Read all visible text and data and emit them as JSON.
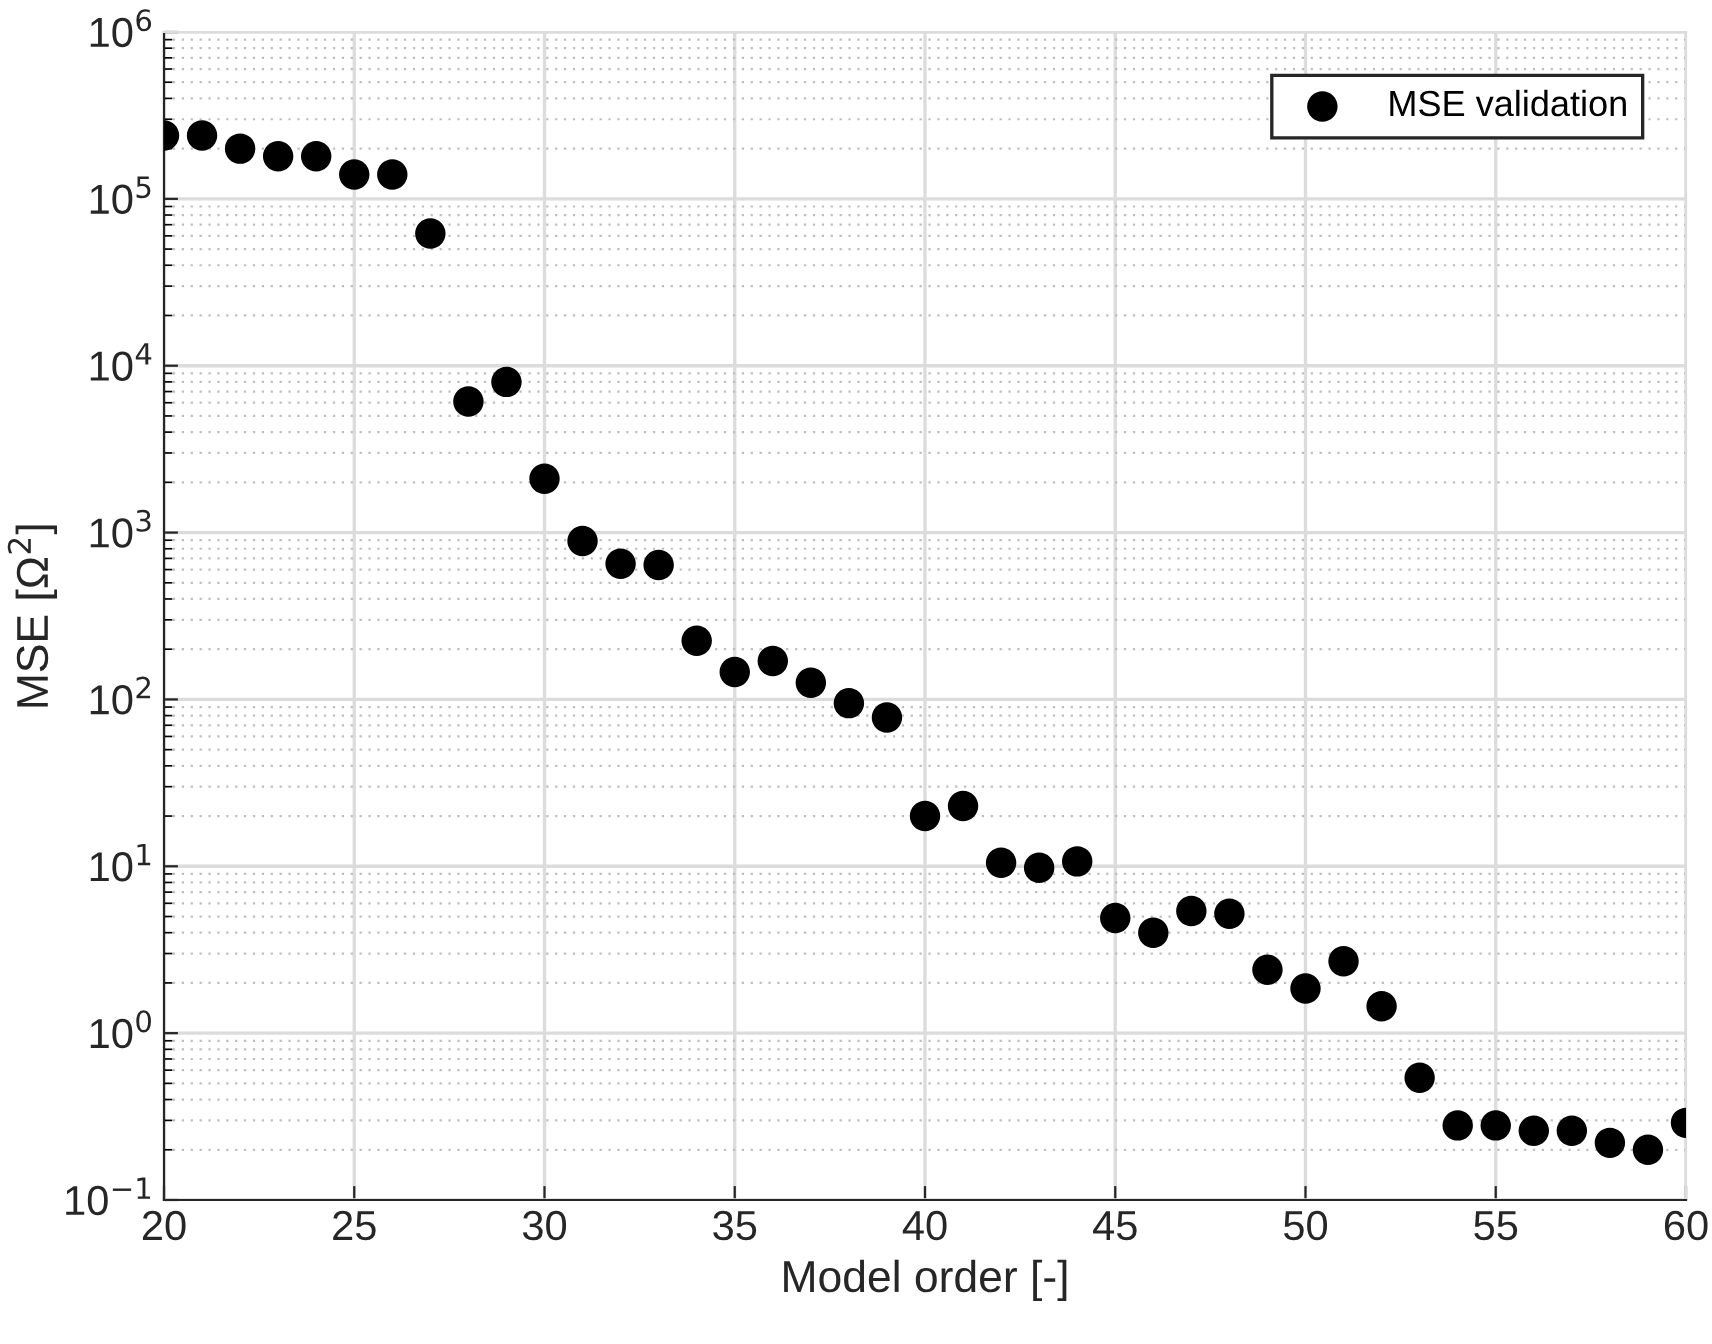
{
  "chart_data": {
    "type": "scatter",
    "xlabel": "Model order [-]",
    "ylabel": "MSE [Ω$^{2}$]",
    "x": [
      20,
      21,
      22,
      23,
      24,
      25,
      26,
      27,
      28,
      29,
      30,
      31,
      32,
      33,
      34,
      35,
      36,
      37,
      38,
      39,
      40,
      41,
      42,
      43,
      44,
      45,
      46,
      47,
      48,
      49,
      50,
      51,
      52,
      53,
      54,
      55,
      56,
      57,
      58,
      59,
      60
    ],
    "series": [
      {
        "name": "MSE validation",
        "color": "#000000",
        "values": [
          240000,
          240000,
          200000,
          180000,
          180000,
          140000,
          140000,
          62000,
          6100,
          8000,
          2100,
          890,
          650,
          640,
          225,
          146,
          170,
          126,
          95,
          78,
          20,
          23,
          10.5,
          9.8,
          10.7,
          4.9,
          4.0,
          5.4,
          5.2,
          2.4,
          1.85,
          2.7,
          1.45,
          0.54,
          0.28,
          0.28,
          0.26,
          0.26,
          0.22,
          0.2,
          0.29
        ]
      }
    ],
    "log": "y",
    "xlim": [
      20,
      60
    ],
    "xticks": [
      20,
      25,
      30,
      35,
      40,
      45,
      50,
      55,
      60
    ],
    "ylim": [
      0.1,
      1000000
    ],
    "yticks": [
      {
        "value": 0.1,
        "label": "10$^{−1}$"
      },
      {
        "value": 1,
        "label": "10$^{0}$"
      },
      {
        "value": 10,
        "label": "10$^{1}$"
      },
      {
        "value": 100,
        "label": "10$^{2}$"
      },
      {
        "value": 1000,
        "label": "10$^{3}$"
      },
      {
        "value": 10000,
        "label": "10$^{4}$"
      },
      {
        "value": 100000,
        "label": "10$^{5}$"
      },
      {
        "value": 1000000,
        "label": "10$^{6}$"
      }
    ],
    "grid": true,
    "legend": "top right",
    "marker": "circle"
  }
}
